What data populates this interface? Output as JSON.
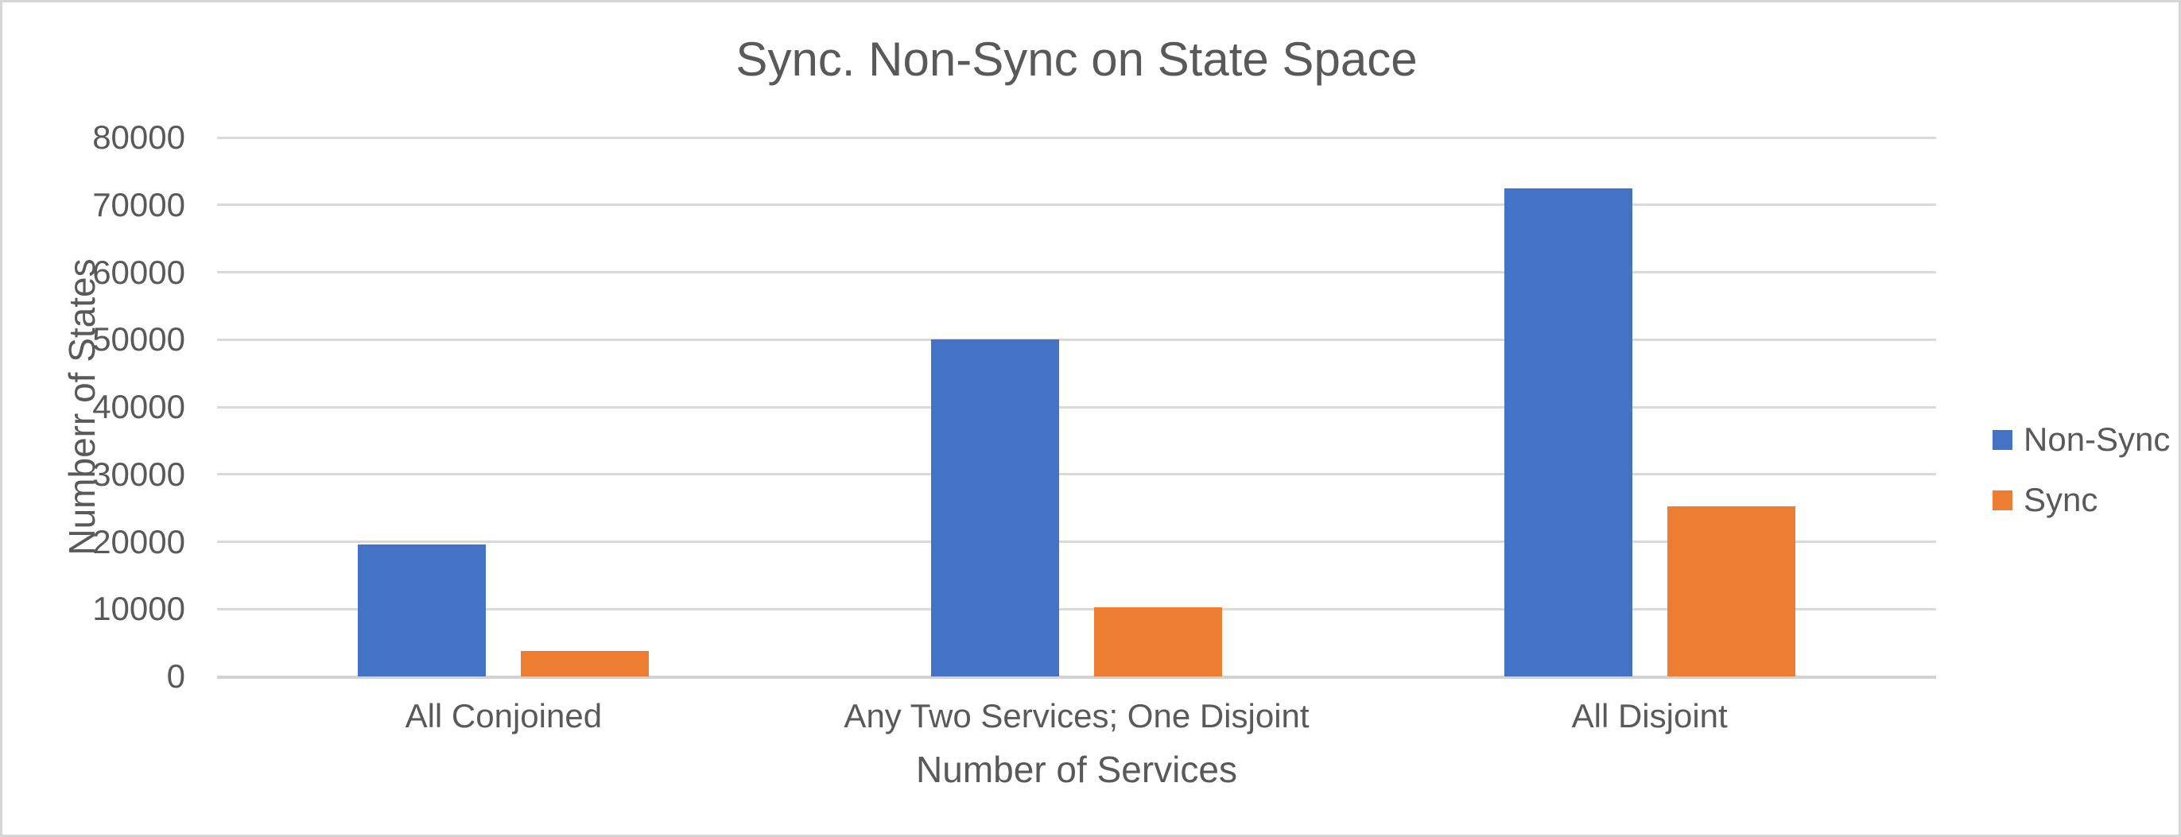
{
  "figure": {
    "background": "#FFFFFF",
    "border_color": "#D6D6D6",
    "text_color": "#595959",
    "gridline_color": "#D9D9D9"
  },
  "chart_data": {
    "type": "bar",
    "title": "Sync. Non-Sync on State Space",
    "xlabel": "Number of Services",
    "ylabel": "Numberr of States",
    "categories": [
      "All Conjoined",
      "Any Two Services; One Disjoint",
      "All Disjoint"
    ],
    "series": [
      {
        "name": "Non-Sync",
        "color": "#4472C4",
        "values": [
          19600,
          50000,
          72500
        ]
      },
      {
        "name": "Sync",
        "color": "#ED7D31",
        "values": [
          3800,
          10300,
          25200
        ]
      }
    ],
    "ylim": [
      0,
      80000
    ],
    "ytick_step": 10000,
    "yticks": [
      0,
      10000,
      20000,
      30000,
      40000,
      50000,
      60000,
      70000,
      80000
    ],
    "grid": true,
    "legend_position": "right"
  }
}
